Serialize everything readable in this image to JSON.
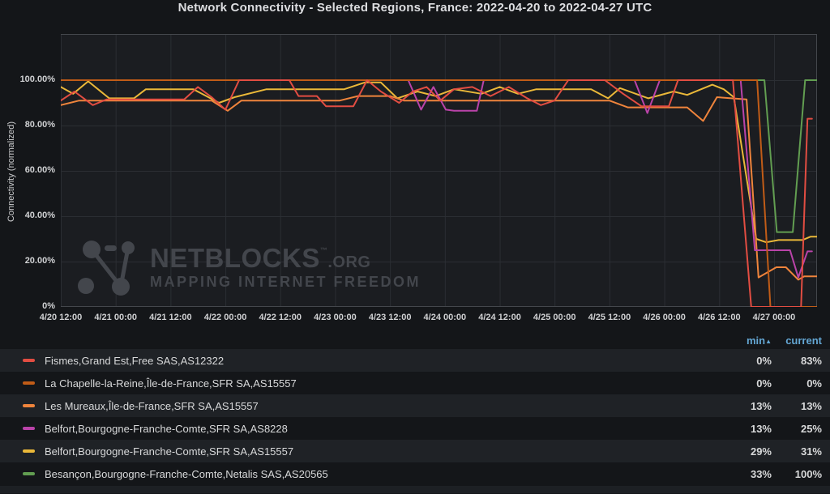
{
  "title": "Network Connectivity - Selected Regions, France: 2022-04-20 to 2022-04-27 UTC",
  "y_axis": {
    "label": "Connectivity (normalized)"
  },
  "watermark": {
    "brand": "NETBLOCKS",
    "tm": "™",
    "org": ".ORG",
    "tagline": "MAPPING INTERNET FREEDOM"
  },
  "legend": {
    "header": {
      "min": "min",
      "sort_arrow": "▲",
      "current": "current"
    },
    "rows": [
      {
        "label": "Fismes,Grand Est,Free SAS,AS12322",
        "color": "#E24D42",
        "min": "0%",
        "current": "83%"
      },
      {
        "label": "La Chapelle-la-Reine,Île-de-France,SFR SA,AS15557",
        "color": "#C15C17",
        "min": "0%",
        "current": "0%"
      },
      {
        "label": "Les Mureaux,Île-de-France,SFR SA,AS15557",
        "color": "#EF843C",
        "min": "13%",
        "current": "13%"
      },
      {
        "label": "Belfort,Bourgogne-Franche-Comte,SFR SA,AS8228",
        "color": "#BA43A9",
        "min": "13%",
        "current": "25%"
      },
      {
        "label": "Belfort,Bourgogne-Franche-Comte,SFR SA,AS15557",
        "color": "#EAB839",
        "min": "29%",
        "current": "31%"
      },
      {
        "label": "Besançon,Bourgogne-Franche-Comte,Netalis SAS,AS20565",
        "color": "#629E51",
        "min": "33%",
        "current": "100%"
      }
    ]
  },
  "chart_data": {
    "type": "line",
    "title": "Network Connectivity - Selected Regions, France: 2022-04-20 to 2022-04-27 UTC",
    "xlabel": "",
    "ylabel": "Connectivity (normalized)",
    "ylim": [
      0,
      100
    ],
    "grid": true,
    "legend_position": "bottom-table",
    "x_unit": "hours since 2022-04-20 12:00 UTC",
    "x_range": [
      0,
      165.4
    ],
    "x_tick_hours": [
      0,
      12,
      24,
      36,
      48,
      60,
      72,
      84,
      96,
      108,
      120,
      132,
      144,
      156
    ],
    "x_tick_labels": [
      "4/20 12:00",
      "4/21 00:00",
      "4/21 12:00",
      "4/22 00:00",
      "4/22 12:00",
      "4/23 00:00",
      "4/23 12:00",
      "4/24 00:00",
      "4/24 12:00",
      "4/25 00:00",
      "4/25 12:00",
      "4/26 00:00",
      "4/26 12:00",
      "4/27 00:00"
    ],
    "y_ticks": [
      {
        "value": 100,
        "label": "100.00%"
      },
      {
        "value": 80,
        "label": "80.00%"
      },
      {
        "value": 60,
        "label": "60.00%"
      },
      {
        "value": 40,
        "label": "40.00%"
      },
      {
        "value": 20,
        "label": "20.00%"
      },
      {
        "value": 0,
        "label": "0%"
      }
    ],
    "draw_order": [
      5,
      4,
      2,
      3,
      1,
      0
    ],
    "series": [
      {
        "name": "Fismes,Grand Est,Free SAS,AS12322",
        "color": "#E24D42",
        "min": 0,
        "current": 83,
        "points": [
          [
            0,
            91
          ],
          [
            3,
            95
          ],
          [
            7,
            89
          ],
          [
            10,
            91.5
          ],
          [
            27,
            91.5
          ],
          [
            30,
            97
          ],
          [
            33,
            92.5
          ],
          [
            36,
            87
          ],
          [
            39,
            100
          ],
          [
            50,
            100
          ],
          [
            52,
            93
          ],
          [
            56,
            93
          ],
          [
            58,
            88.5
          ],
          [
            64,
            88.5
          ],
          [
            67,
            100
          ],
          [
            70,
            95
          ],
          [
            74,
            90
          ],
          [
            77,
            95
          ],
          [
            80,
            97
          ],
          [
            83,
            91
          ],
          [
            86,
            96
          ],
          [
            90,
            97
          ],
          [
            94,
            93
          ],
          [
            98,
            97
          ],
          [
            102,
            92
          ],
          [
            105,
            89
          ],
          [
            108,
            91
          ],
          [
            111,
            100
          ],
          [
            119,
            100
          ],
          [
            123,
            94
          ],
          [
            127,
            88.5
          ],
          [
            133,
            88.5
          ],
          [
            135,
            100
          ],
          [
            147,
            100
          ],
          [
            151,
            0
          ],
          [
            161.9,
            0
          ],
          [
            163.3,
            83
          ],
          [
            164.3,
            83
          ]
        ]
      },
      {
        "name": "La Chapelle-la-Reine,Île-de-France,SFR SA,AS15557",
        "color": "#C15C17",
        "min": 0,
        "current": 0,
        "points": [
          [
            0,
            100
          ],
          [
            152.3,
            100
          ],
          [
            155.2,
            0
          ],
          [
            165.4,
            0
          ]
        ]
      },
      {
        "name": "Les Mureaux,Île-de-France,SFR SA,AS15557",
        "color": "#EF843C",
        "min": 13,
        "current": 13,
        "points": [
          [
            0,
            89
          ],
          [
            4,
            91
          ],
          [
            33,
            91
          ],
          [
            36.5,
            86.5
          ],
          [
            39.5,
            91
          ],
          [
            61,
            91
          ],
          [
            65,
            93
          ],
          [
            72,
            93
          ],
          [
            75,
            91
          ],
          [
            120,
            91
          ],
          [
            124,
            88
          ],
          [
            137,
            88
          ],
          [
            140.5,
            82
          ],
          [
            143.5,
            92.5
          ],
          [
            150,
            91.5
          ],
          [
            152.6,
            13
          ],
          [
            156.5,
            17.5
          ],
          [
            158.6,
            17.5
          ],
          [
            161.3,
            12
          ],
          [
            162.6,
            13.5
          ],
          [
            165.4,
            13.5
          ]
        ]
      },
      {
        "name": "Belfort,Bourgogne-Franche-Comte,SFR SA,AS8228",
        "color": "#BA43A9",
        "min": 13,
        "current": 25,
        "points": [
          [
            0,
            100
          ],
          [
            76,
            100
          ],
          [
            78.8,
            87
          ],
          [
            81.5,
            97
          ],
          [
            84.2,
            87
          ],
          [
            86,
            86.5
          ],
          [
            91,
            86.5
          ],
          [
            92.5,
            100
          ],
          [
            125.5,
            100
          ],
          [
            128.3,
            85.5
          ],
          [
            131,
            100
          ],
          [
            148.7,
            100
          ],
          [
            151.8,
            25
          ],
          [
            159.5,
            25
          ],
          [
            161.3,
            13
          ],
          [
            163.3,
            24.5
          ],
          [
            164.3,
            24.5
          ]
        ]
      },
      {
        "name": "Belfort,Bourgogne-Franche-Comte,SFR SA,AS15557",
        "color": "#EAB839",
        "min": 29,
        "current": 31,
        "points": [
          [
            0,
            97
          ],
          [
            2.7,
            94
          ],
          [
            6,
            99.5
          ],
          [
            10.6,
            92
          ],
          [
            16,
            92
          ],
          [
            18.6,
            96
          ],
          [
            29,
            96
          ],
          [
            34.6,
            90
          ],
          [
            38,
            92.5
          ],
          [
            45,
            96
          ],
          [
            62,
            96
          ],
          [
            66.5,
            99
          ],
          [
            70,
            99
          ],
          [
            73.6,
            92
          ],
          [
            78,
            95
          ],
          [
            82,
            93
          ],
          [
            86,
            96
          ],
          [
            92,
            94
          ],
          [
            96,
            97
          ],
          [
            100,
            94
          ],
          [
            104,
            96
          ],
          [
            116,
            96
          ],
          [
            119.7,
            92
          ],
          [
            122.3,
            96.5
          ],
          [
            128.5,
            92
          ],
          [
            134,
            95
          ],
          [
            137,
            93.5
          ],
          [
            142.5,
            98
          ],
          [
            145,
            96
          ],
          [
            147.2,
            92.5
          ],
          [
            152.1,
            30
          ],
          [
            154.3,
            28.5
          ],
          [
            157,
            29.5
          ],
          [
            162.2,
            29.5
          ],
          [
            164,
            31
          ],
          [
            165.4,
            31
          ]
        ]
      },
      {
        "name": "Besançon,Bourgogne-Franche-Comte,Netalis SAS,AS20565",
        "color": "#629E51",
        "min": 33,
        "current": 100,
        "points": [
          [
            0,
            100
          ],
          [
            153.9,
            100
          ],
          [
            156.6,
            33
          ],
          [
            160.1,
            33
          ],
          [
            162.8,
            100
          ],
          [
            165.4,
            100
          ]
        ]
      }
    ]
  },
  "colors": {
    "page_bg": "#141619",
    "plot_bg": "#1b1d21",
    "plot_border": "#44474c",
    "grid": "#2b2e33",
    "header_link": "#64a7d4",
    "row_alt_bg": "#1f2226",
    "watermark": "#43464c"
  }
}
